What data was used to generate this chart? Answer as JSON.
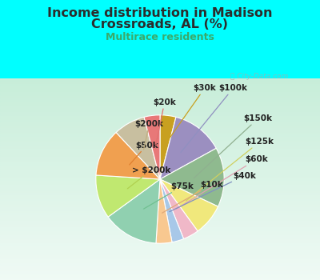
{
  "title_line1": "Income distribution in Madison",
  "title_line2": "Crossroads, AL (%)",
  "subtitle": "Multirace residents",
  "watermark": "ⓘ City-Data.com",
  "labels_ordered": [
    "$30k",
    "$100k",
    "$150k",
    "$125k",
    "$60k",
    "$40k",
    "$10k",
    "$75k",
    "> $200k",
    "$50k",
    "$200k",
    "$20k"
  ],
  "values_ordered": [
    4,
    13,
    15,
    8,
    4,
    3,
    4,
    14,
    11,
    12,
    8,
    4
  ],
  "colors_ordered": [
    "#c8a020",
    "#9b8fc0",
    "#8fba8f",
    "#f0e87c",
    "#f0b8c8",
    "#a8c8e8",
    "#f8c890",
    "#90d0b0",
    "#c0e870",
    "#f0a050",
    "#c8bfa0",
    "#e87878"
  ],
  "bg_top": "#00ffff",
  "bg_chart_top": "#f0faf8",
  "bg_chart_bottom": "#c8ecd8",
  "title_color": "#2c2c2c",
  "subtitle_color": "#3aaa6a",
  "watermark_color": "#aaaaaa",
  "label_color": "#222222",
  "label_fontsize": 7.5,
  "title_fontsize": 11.5,
  "subtitle_fontsize": 9
}
